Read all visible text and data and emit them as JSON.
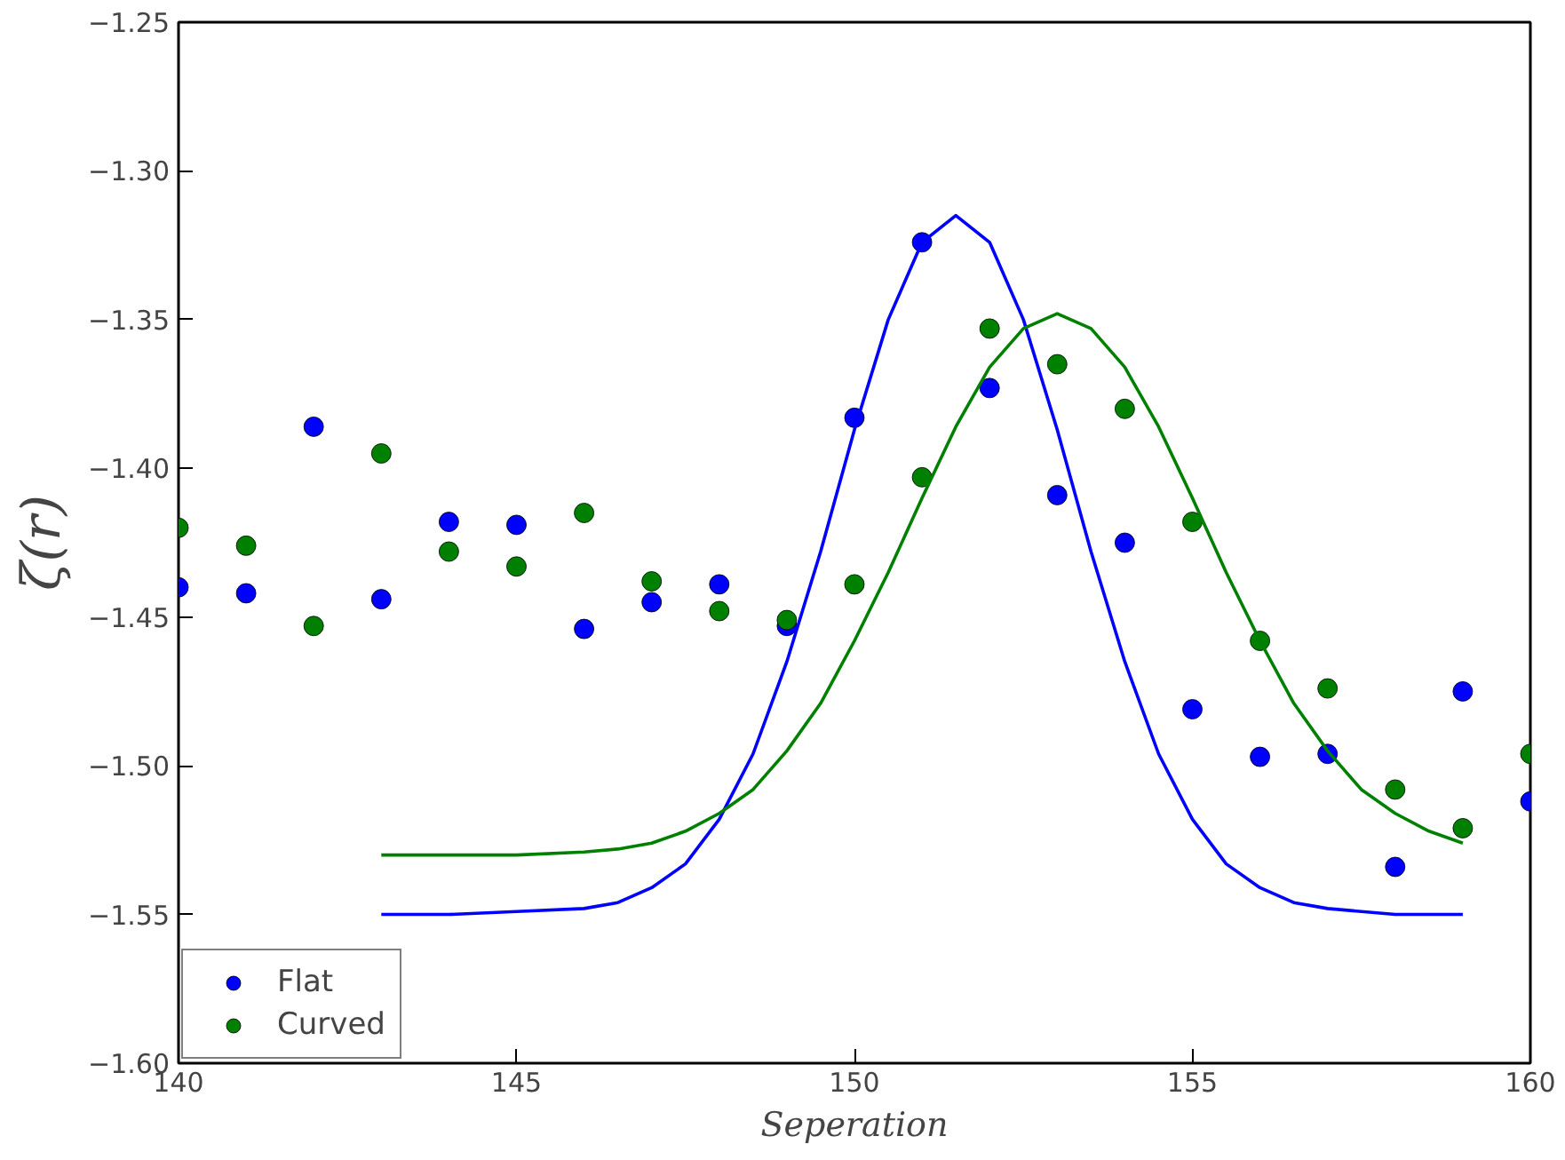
{
  "chart_data": {
    "type": "scatter",
    "xlabel": "Seperation",
    "ylabel": "ζ(r)",
    "x": [
      140,
      141,
      142,
      143,
      144,
      145,
      146,
      147,
      148,
      149,
      150,
      151,
      152,
      153,
      154,
      155,
      156,
      157,
      158,
      159,
      160
    ],
    "series": [
      {
        "name": "Flat",
        "marker": "circle",
        "color": "#0000ff",
        "values": [
          -1.44,
          -1.442,
          -1.386,
          -1.444,
          -1.418,
          -1.419,
          -1.454,
          -1.445,
          -1.439,
          -1.453,
          -1.383,
          -1.324,
          -1.373,
          -1.409,
          -1.425,
          -1.481,
          -1.497,
          -1.496,
          -1.534,
          -1.475,
          -1.512
        ]
      },
      {
        "name": "Curved",
        "marker": "circle",
        "color": "#008000",
        "values": [
          -1.42,
          -1.426,
          -1.453,
          -1.395,
          -1.428,
          -1.433,
          -1.415,
          -1.438,
          -1.448,
          -1.451,
          -1.439,
          -1.403,
          -1.353,
          -1.365,
          -1.38,
          -1.418,
          -1.458,
          -1.474,
          -1.508,
          -1.521,
          -1.496
        ]
      },
      {
        "type": "line",
        "marker": "none",
        "color": "#0000ff",
        "x": [
          143,
          144,
          145,
          146,
          146.5,
          147,
          147.5,
          148,
          148.5,
          149,
          149.5,
          150,
          150.5,
          151,
          151.5,
          152,
          152.5,
          153,
          153.5,
          154,
          154.5,
          155,
          155.5,
          156,
          156.5,
          157,
          158,
          159
        ],
        "values": [
          -1.55,
          -1.55,
          -1.549,
          -1.548,
          -1.546,
          -1.541,
          -1.533,
          -1.518,
          -1.496,
          -1.465,
          -1.428,
          -1.387,
          -1.35,
          -1.324,
          -1.315,
          -1.324,
          -1.35,
          -1.387,
          -1.428,
          -1.465,
          -1.496,
          -1.518,
          -1.533,
          -1.541,
          -1.546,
          -1.548,
          -1.55,
          -1.55
        ]
      },
      {
        "type": "line",
        "marker": "none",
        "color": "#008000",
        "x": [
          143,
          145,
          146,
          146.5,
          147,
          147.5,
          148,
          148.5,
          149,
          149.5,
          150,
          150.5,
          151,
          151.5,
          152,
          152.5,
          153,
          153.5,
          154,
          154.5,
          155,
          155.5,
          156,
          156.5,
          157,
          157.5,
          158,
          158.5,
          159
        ],
        "values": [
          -1.53,
          -1.53,
          -1.529,
          -1.528,
          -1.526,
          -1.522,
          -1.516,
          -1.508,
          -1.495,
          -1.479,
          -1.458,
          -1.435,
          -1.41,
          -1.386,
          -1.366,
          -1.353,
          -1.348,
          -1.353,
          -1.366,
          -1.386,
          -1.41,
          -1.435,
          -1.458,
          -1.479,
          -1.495,
          -1.508,
          -1.516,
          -1.522,
          -1.526
        ]
      }
    ],
    "line_style": "solid",
    "grid": false,
    "legend": "bottom left",
    "xlim": [
      140,
      160
    ],
    "xticks": [
      140,
      145,
      150,
      155,
      160
    ],
    "ylim": [
      -1.6,
      -1.25
    ],
    "yticks": [
      {
        "value": -1.6,
        "label": "−1.60"
      },
      {
        "value": -1.55,
        "label": "−1.55"
      },
      {
        "value": -1.5,
        "label": "−1.50"
      },
      {
        "value": -1.45,
        "label": "−1.45"
      },
      {
        "value": -1.4,
        "label": "−1.40"
      },
      {
        "value": -1.35,
        "label": "−1.35"
      },
      {
        "value": -1.3,
        "label": "−1.30"
      },
      {
        "value": -1.25,
        "label": "−1.25"
      }
    ]
  }
}
